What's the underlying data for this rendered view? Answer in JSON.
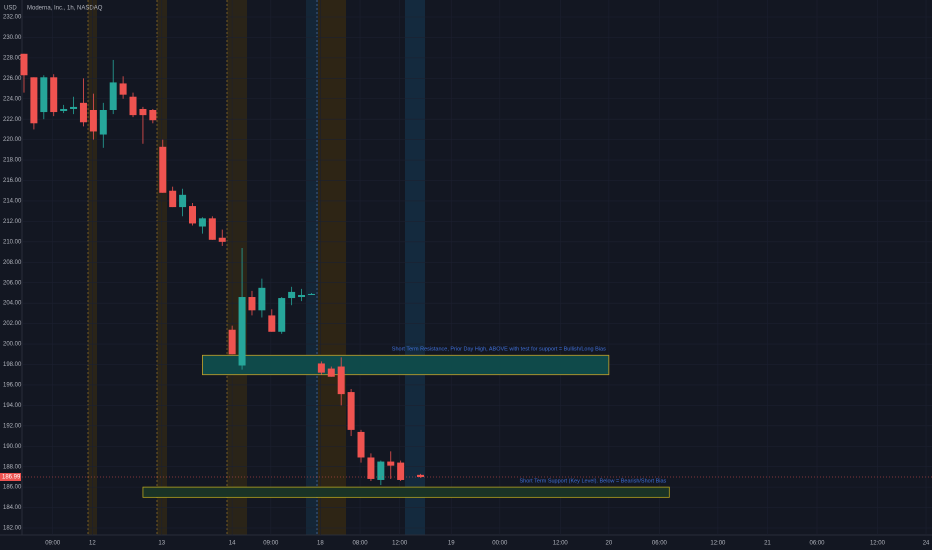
{
  "chart_data": {
    "type": "candlestick",
    "title": "Moderna, Inc., 1h, NASDAQ",
    "currency": "USD",
    "up_color": "#26a69a",
    "down_color": "#ef5350",
    "x": [
      0,
      1,
      2,
      3,
      4,
      5,
      6,
      7,
      8,
      9,
      10,
      11,
      12,
      13,
      14,
      15,
      16,
      17,
      18,
      19,
      20,
      21,
      22,
      23,
      24,
      25,
      26,
      27,
      28,
      29,
      30,
      31,
      32,
      33,
      34,
      35,
      36,
      37,
      38,
      40
    ],
    "open": [
      228.4,
      226.1,
      222.7,
      226.1,
      222.8,
      223.0,
      223.6,
      222.9,
      220.5,
      222.9,
      225.5,
      224.2,
      223.0,
      222.9,
      219.3,
      215.0,
      213.4,
      213.5,
      211.5,
      212.3,
      210.4,
      201.4,
      197.9,
      204.6,
      203.3,
      202.8,
      201.2,
      204.5,
      204.6,
      204.9,
      198.1,
      197.6,
      197.8,
      195.3,
      191.4,
      188.9,
      186.7,
      188.5,
      188.4,
      187.2
    ],
    "high": [
      228.4,
      226.1,
      226.3,
      226.4,
      223.4,
      224.2,
      226.0,
      224.5,
      223.6,
      227.8,
      226.2,
      224.6,
      223.2,
      223.0,
      220.0,
      215.4,
      215.2,
      213.8,
      212.4,
      212.5,
      211.2,
      201.8,
      209.4,
      205.2,
      206.4,
      203.4,
      204.6,
      205.6,
      205.4,
      205.0,
      198.3,
      197.8,
      198.7,
      195.6,
      191.6,
      189.3,
      188.6,
      189.5,
      188.6,
      187.3
    ],
    "low": [
      224.6,
      221.0,
      222.0,
      222.3,
      222.6,
      222.5,
      221.3,
      220.0,
      219.2,
      222.5,
      224.0,
      222.2,
      219.6,
      221.6,
      214.8,
      213.4,
      212.5,
      211.6,
      210.8,
      210.2,
      209.6,
      199.0,
      197.5,
      202.8,
      202.6,
      201.2,
      201.0,
      203.8,
      204.2,
      204.8,
      197.0,
      196.8,
      194.0,
      191.0,
      188.4,
      186.6,
      186.2,
      186.8,
      186.6,
      186.9
    ],
    "close": [
      226.3,
      221.6,
      226.1,
      222.7,
      223.0,
      223.2,
      221.7,
      220.8,
      222.9,
      225.6,
      224.4,
      222.4,
      222.4,
      221.9,
      214.8,
      213.4,
      214.6,
      211.8,
      212.3,
      210.2,
      210.0,
      199.0,
      204.6,
      203.3,
      205.5,
      201.2,
      204.5,
      205.1,
      204.8,
      204.9,
      197.2,
      196.8,
      195.1,
      191.6,
      188.9,
      186.8,
      188.5,
      188.1,
      186.7,
      186.99
    ],
    "xlim": [
      -0.2,
      91.6
    ],
    "ylim": [
      182,
      232
    ],
    "xticks": [
      {
        "value": 2.9,
        "label": "09:00"
      },
      {
        "value": 6.9,
        "label": "12"
      },
      {
        "value": 13.9,
        "label": "13"
      },
      {
        "value": 21,
        "label": "14"
      },
      {
        "value": 24.9,
        "label": "09:00"
      },
      {
        "value": 29.9,
        "label": "18"
      },
      {
        "value": 33.9,
        "label": "08:00"
      },
      {
        "value": 37.9,
        "label": "12:00"
      },
      {
        "value": 43.1,
        "label": "19"
      },
      {
        "value": 48,
        "label": "00:00"
      },
      {
        "value": 54.1,
        "label": "12:00"
      },
      {
        "value": 59,
        "label": "20"
      },
      {
        "value": 64.1,
        "label": "06:00"
      },
      {
        "value": 70,
        "label": "12:00"
      },
      {
        "value": 75,
        "label": "21"
      },
      {
        "value": 80,
        "label": "06:00"
      },
      {
        "value": 86.1,
        "label": "12:00"
      },
      {
        "value": 91,
        "label": "24"
      }
    ],
    "yticks": [
      {
        "value": 182,
        "label": "182.00"
      },
      {
        "value": 184,
        "label": "184.00"
      },
      {
        "value": 186,
        "label": "186.00"
      },
      {
        "value": 188,
        "label": "188.00"
      },
      {
        "value": 190,
        "label": "190.00"
      },
      {
        "value": 192,
        "label": "192.00"
      },
      {
        "value": 194,
        "label": "194.00"
      },
      {
        "value": 196,
        "label": "196.00"
      },
      {
        "value": 198,
        "label": "198.00"
      },
      {
        "value": 200,
        "label": "200.00"
      },
      {
        "value": 202,
        "label": "202.00"
      },
      {
        "value": 204,
        "label": "204.00"
      },
      {
        "value": 206,
        "label": "206.00"
      },
      {
        "value": 208,
        "label": "208.00"
      },
      {
        "value": 210,
        "label": "210.00"
      },
      {
        "value": 212,
        "label": "212.00"
      },
      {
        "value": 214,
        "label": "214.00"
      },
      {
        "value": 216,
        "label": "216.00"
      },
      {
        "value": 218,
        "label": "218.00"
      },
      {
        "value": 220,
        "label": "220.00"
      },
      {
        "value": 222,
        "label": "222.00"
      },
      {
        "value": 224,
        "label": "224.00"
      },
      {
        "value": 226,
        "label": "226.00"
      },
      {
        "value": 228,
        "label": "228.00"
      },
      {
        "value": 230,
        "label": "230.00"
      },
      {
        "value": 232,
        "label": "232.00"
      }
    ],
    "zones": [
      {
        "text": "Short Term Resistance, Prior Day High, ABOVE with test for support = Bullish/Long Bias",
        "xmin": 18,
        "xmax": 59,
        "ymin": 197.0,
        "ymax": 198.9,
        "fill": "#0f4a4a",
        "border": "#c9a227"
      },
      {
        "text": "Short Term Support (Key Level). Below = Bearish/Short Bias",
        "xmin": 12,
        "xmax": 65.1,
        "ymin": 185.0,
        "ymax": 186.0,
        "fill": "#1a3326",
        "border": "#b5a31e"
      }
    ]
  }
}
